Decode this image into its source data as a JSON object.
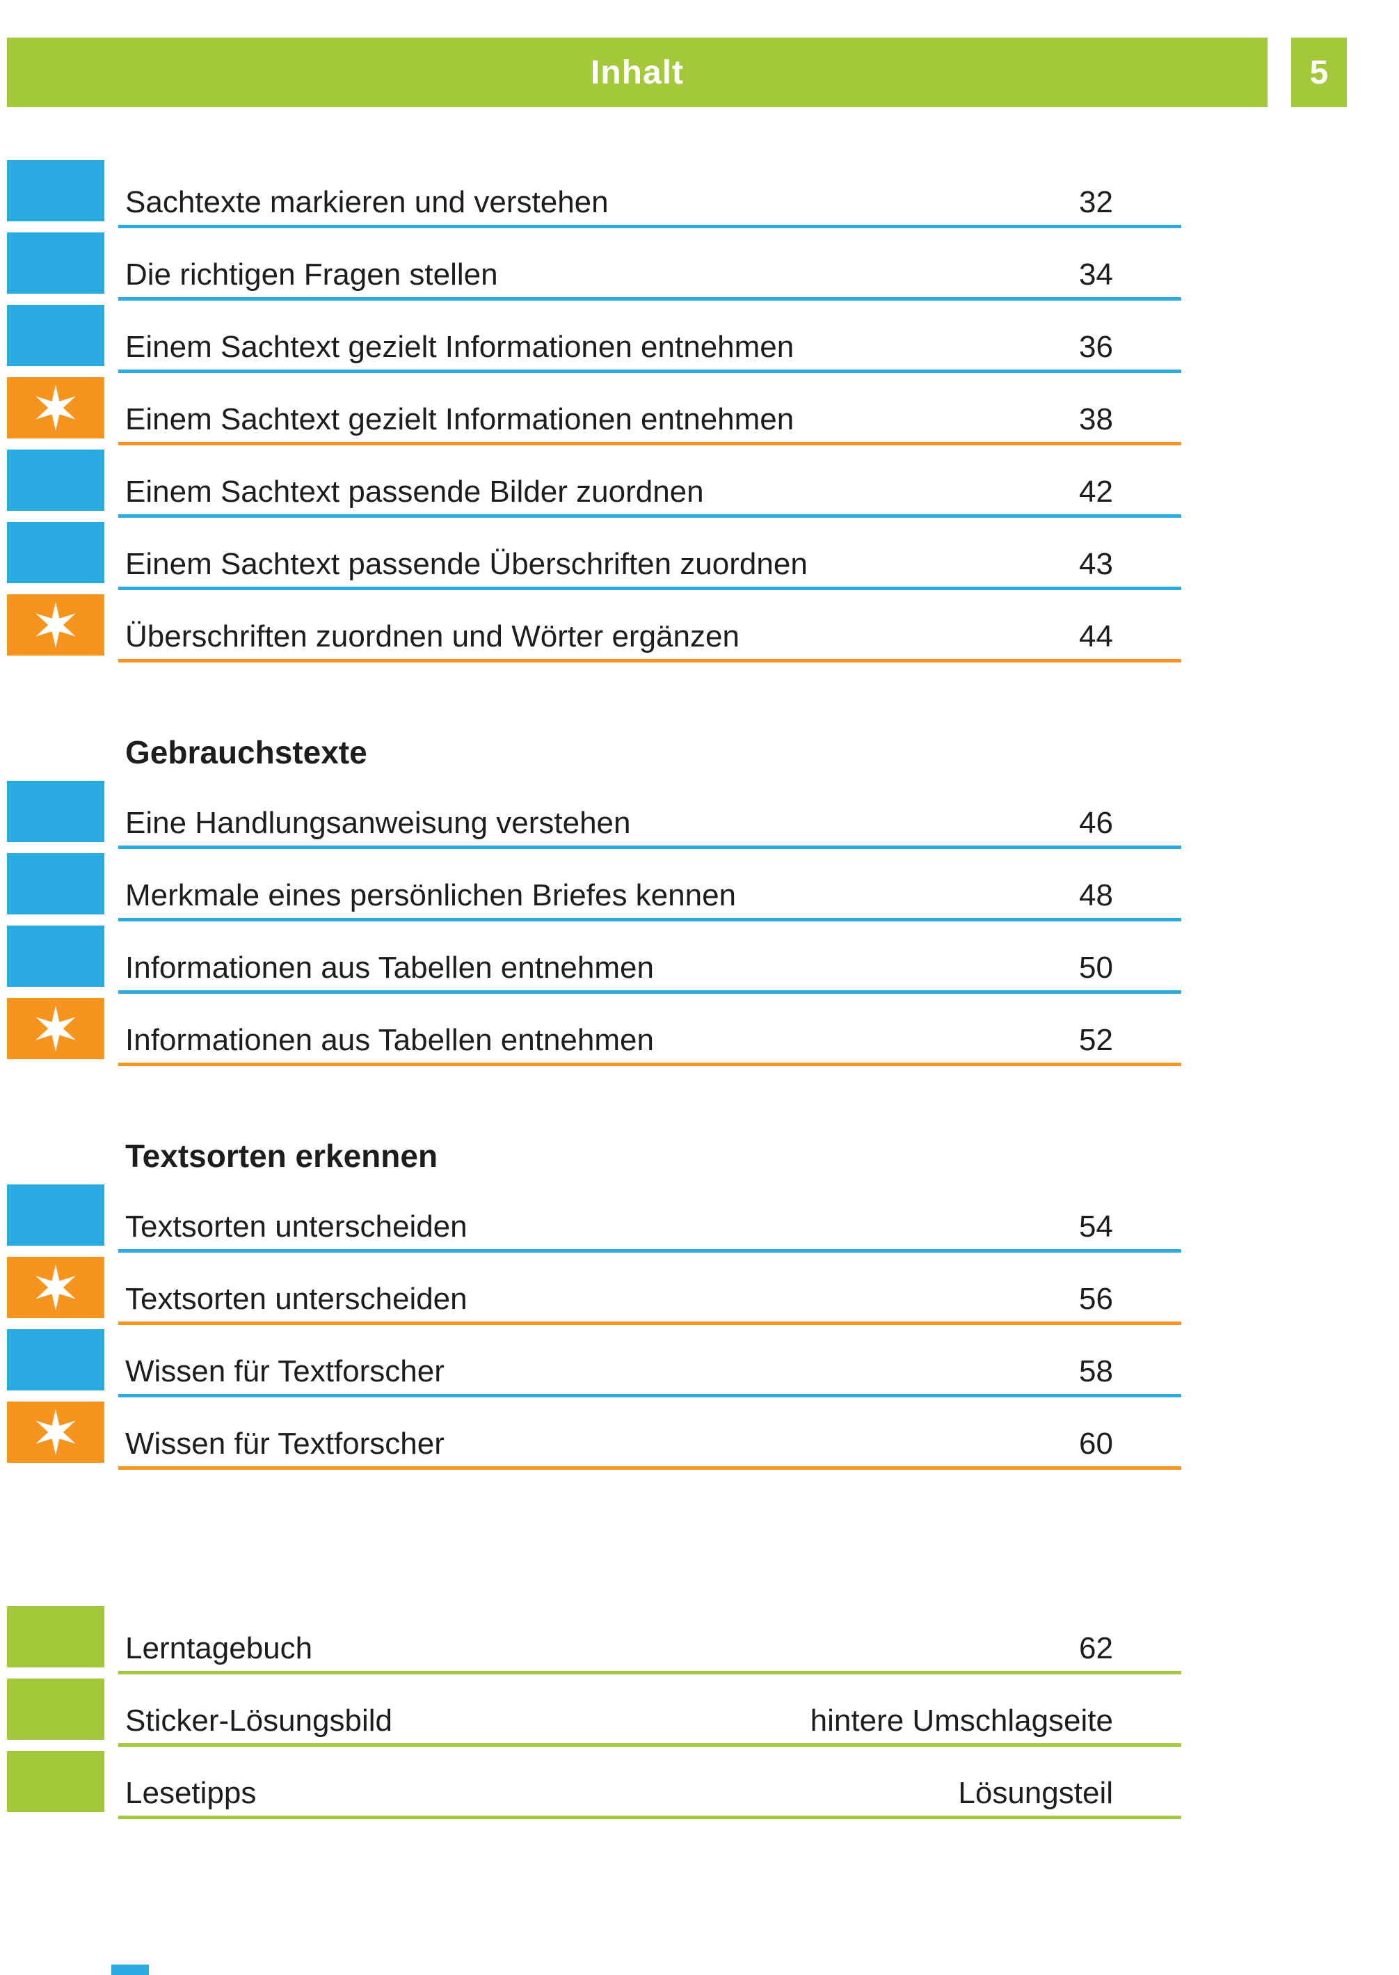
{
  "header": {
    "title": "Inhalt",
    "page_number": "5"
  },
  "colors": {
    "green": "#a3c93a",
    "blue": "#29abe2",
    "orange": "#f7941e",
    "text": "#1d1d1b"
  },
  "icons": {
    "star": "star-icon"
  },
  "sections": [
    {
      "heading": "",
      "entries": [
        {
          "color": "blue",
          "star": false,
          "title": "Sachtexte markieren und verstehen",
          "page": "32"
        },
        {
          "color": "blue",
          "star": false,
          "title": "Die richtigen Fragen stellen",
          "page": "34"
        },
        {
          "color": "blue",
          "star": false,
          "title": "Einem Sachtext gezielt Informationen entnehmen",
          "page": "36"
        },
        {
          "color": "orange",
          "star": true,
          "title": "Einem Sachtext gezielt Informationen entnehmen",
          "page": "38"
        },
        {
          "color": "blue",
          "star": false,
          "title": "Einem Sachtext passende Bilder zuordnen",
          "page": "42"
        },
        {
          "color": "blue",
          "star": false,
          "title": "Einem Sachtext passende Überschriften zuordnen",
          "page": "43"
        },
        {
          "color": "orange",
          "star": true,
          "title": "Überschriften zuordnen und Wörter ergänzen",
          "page": "44"
        }
      ]
    },
    {
      "heading": "Gebrauchstexte",
      "entries": [
        {
          "color": "blue",
          "star": false,
          "title": "Eine Handlungsanweisung verstehen",
          "page": "46"
        },
        {
          "color": "blue",
          "star": false,
          "title": "Merkmale eines persönlichen Briefes kennen",
          "page": "48"
        },
        {
          "color": "blue",
          "star": false,
          "title": "Informationen aus Tabellen entnehmen",
          "page": "50"
        },
        {
          "color": "orange",
          "star": true,
          "title": "Informationen aus Tabellen entnehmen",
          "page": "52"
        }
      ]
    },
    {
      "heading": "Textsorten erkennen",
      "entries": [
        {
          "color": "blue",
          "star": false,
          "title": "Textsorten unterscheiden",
          "page": "54"
        },
        {
          "color": "orange",
          "star": true,
          "title": "Textsorten unterscheiden",
          "page": "56"
        },
        {
          "color": "blue",
          "star": false,
          "title": "Wissen für Textforscher",
          "page": "58"
        },
        {
          "color": "orange",
          "star": true,
          "title": "Wissen für Textforscher",
          "page": "60"
        }
      ]
    },
    {
      "heading": "",
      "gap": "large",
      "entries": [
        {
          "color": "green",
          "star": false,
          "title": "Lerntagebuch",
          "page": "62"
        },
        {
          "color": "green",
          "star": false,
          "title": "Sticker-Lösungsbild",
          "page": "hintere Umschlagseite"
        },
        {
          "color": "green",
          "star": false,
          "title": "Lesetipps",
          "page": "Lösungsteil"
        }
      ]
    }
  ]
}
